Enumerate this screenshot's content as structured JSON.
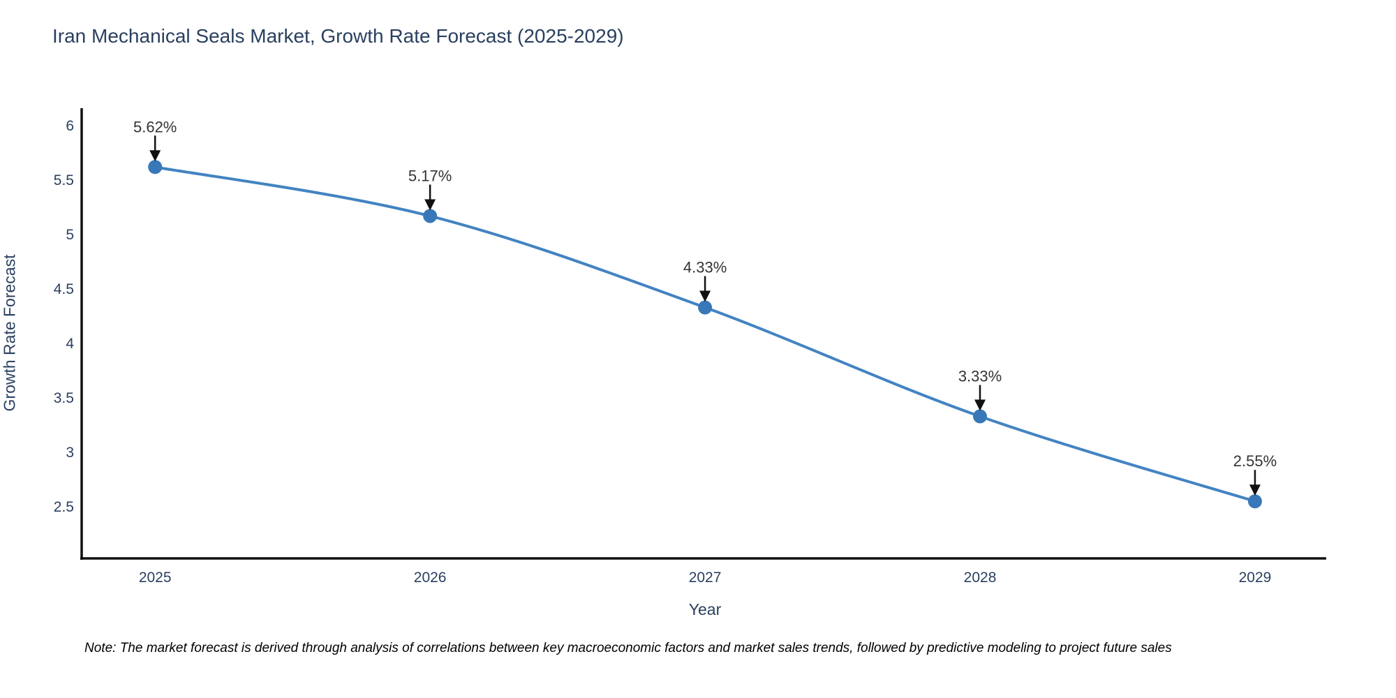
{
  "chart_data": {
    "type": "line",
    "title": "Iran Mechanical Seals Market, Growth Rate Forecast (2025-2029)",
    "xlabel": "Year",
    "ylabel": "Growth Rate Forecast",
    "categories": [
      2025,
      2026,
      2027,
      2028,
      2029
    ],
    "series": [
      {
        "name": "Growth Rate Forecast",
        "values": [
          5.62,
          5.17,
          4.33,
          3.33,
          2.55
        ],
        "point_labels": [
          "5.62%",
          "5.17%",
          "4.33%",
          "3.33%",
          "2.55%"
        ]
      }
    ],
    "y_ticks": [
      6,
      5.5,
      5,
      4.5,
      4,
      3.5,
      3,
      2.5
    ],
    "ylim": [
      2.026,
      6.16
    ],
    "xlim": [
      2024.733,
      2029.259
    ],
    "grid": false,
    "legend": "none",
    "line_shape": "spline",
    "note": "Note: The market forecast is derived through analysis of correlations between key macroeconomic factors and market sales trends, followed by predictive modeling to project future sales",
    "colors": {
      "line": "#4383c2",
      "marker": "#3978b8",
      "arrow": "#111111",
      "axis_line": "#111111",
      "axis_text": "#2a3f5f",
      "annotation_text": "#333333",
      "title_text": "#2a3f5f",
      "background": "#ffffff"
    }
  }
}
